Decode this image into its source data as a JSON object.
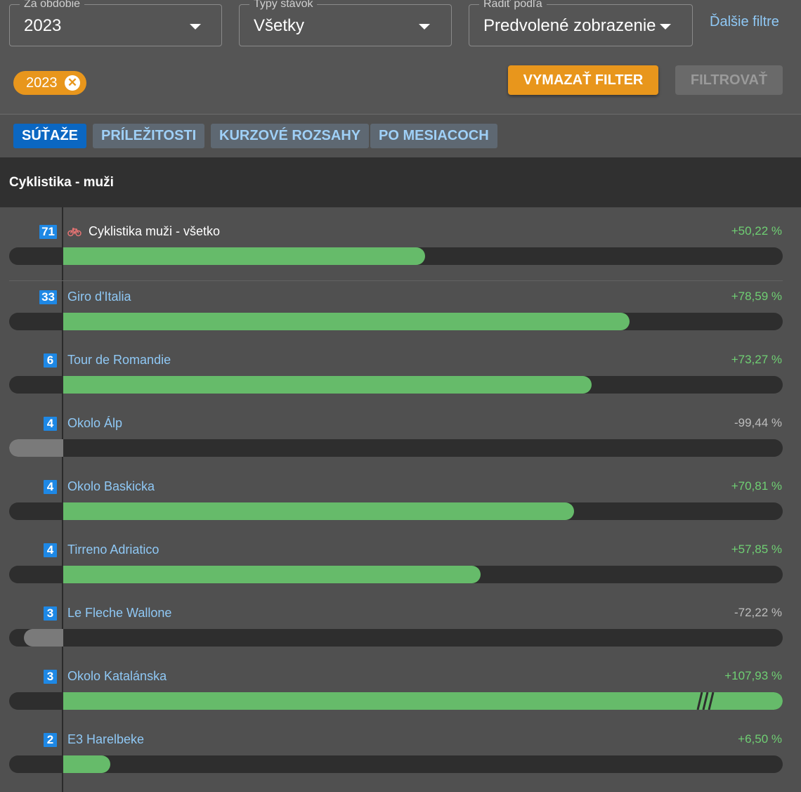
{
  "filters": {
    "period": {
      "label": "Za obdobie",
      "value": "2023"
    },
    "bet_types": {
      "label": "Typy stávok",
      "value": "Všetky"
    },
    "sort_by": {
      "label": "Radiť podľa",
      "value": "Predvolené zobrazenie"
    },
    "more_filters": "Ďalšie filtre"
  },
  "active_chip": {
    "label": "2023",
    "close_icon": "close-circle-icon"
  },
  "buttons": {
    "clear": "VYMAZAŤ FILTER",
    "filter": "FILTROVAŤ"
  },
  "tabs": [
    {
      "label": "SÚŤAŽE",
      "active": true
    },
    {
      "label": "PRÍLEŽITOSTI",
      "active": false
    },
    {
      "label": "KURZOVÉ ROZSAHY",
      "active": false
    },
    {
      "label": "PO MESIACOCH",
      "active": false
    }
  ],
  "section": {
    "title": "Cyklistika - muži"
  },
  "colors": {
    "positive": "#66bb6a",
    "negative": "#7a7a7a",
    "accent": "#e8961c",
    "tab_active": "#0b67c2",
    "link": "#8fc8f5"
  },
  "rows": [
    {
      "count": "71",
      "name": "Cyklistika muži - všetko",
      "percent_label": "+50,22 %",
      "percent": 50.22,
      "icon": "bicycle-icon",
      "summary": true
    },
    {
      "count": "33",
      "name": "Giro d'Italia",
      "percent_label": "+78,59 %",
      "percent": 78.59
    },
    {
      "count": "6",
      "name": "Tour de Romandie",
      "percent_label": "+73,27 %",
      "percent": 73.27
    },
    {
      "count": "4",
      "name": "Okolo Álp",
      "percent_label": "-99,44 %",
      "percent": -99.44
    },
    {
      "count": "4",
      "name": "Okolo Baskicka",
      "percent_label": "+70,81 %",
      "percent": 70.81
    },
    {
      "count": "4",
      "name": "Tirreno Adriatico",
      "percent_label": "+57,85 %",
      "percent": 57.85
    },
    {
      "count": "3",
      "name": "Le Fleche Wallone",
      "percent_label": "-72,22 %",
      "percent": -72.22
    },
    {
      "count": "3",
      "name": "Okolo Katalánska",
      "percent_label": "+107,93 %",
      "percent": 107.93,
      "overflow": true
    },
    {
      "count": "2",
      "name": "E3 Harelbeke",
      "percent_label": "+6,50 %",
      "percent": 6.5
    }
  ]
}
